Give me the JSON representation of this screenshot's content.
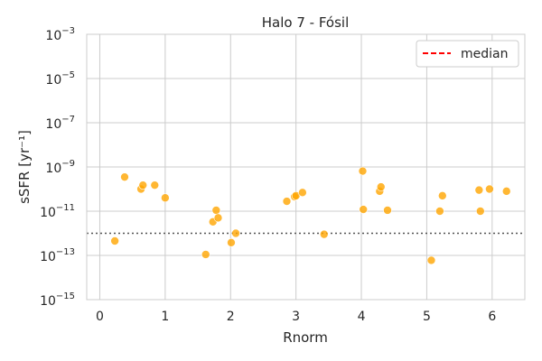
{
  "chart_data": {
    "type": "scatter",
    "title": "Halo 7 - Fósil",
    "xlabel": "Rnorm",
    "ylabel": "sSFR [yr⁻¹]",
    "xlim": [
      -0.2,
      6.5
    ],
    "y_scale": "log",
    "ylim": [
      1e-15,
      0.001
    ],
    "x_ticks": [
      0,
      1,
      2,
      3,
      4,
      5,
      6
    ],
    "x_tick_labels": [
      "0",
      "1",
      "2",
      "3",
      "4",
      "5",
      "6"
    ],
    "y_ticks": [
      1e-15,
      1e-13,
      1e-11,
      1e-09,
      1e-07,
      1e-05,
      0.001
    ],
    "y_tick_labels": [
      {
        "base": "10",
        "exp": "−15"
      },
      {
        "base": "10",
        "exp": "−13"
      },
      {
        "base": "10",
        "exp": "−11"
      },
      {
        "base": "10",
        "exp": "−9"
      },
      {
        "base": "10",
        "exp": "−7"
      },
      {
        "base": "10",
        "exp": "−5"
      },
      {
        "base": "10",
        "exp": "−3"
      }
    ],
    "grid": true,
    "legend_position": "top-right",
    "series": [
      {
        "type": "scatter",
        "color": "#FFA500",
        "points": [
          {
            "x": 0.23,
            "y": 4.5e-13
          },
          {
            "x": 0.38,
            "y": 3.5e-10
          },
          {
            "x": 0.63,
            "y": 1e-10
          },
          {
            "x": 0.66,
            "y": 1.5e-10
          },
          {
            "x": 0.84,
            "y": 1.5e-10
          },
          {
            "x": 1.0,
            "y": 4e-11
          },
          {
            "x": 1.62,
            "y": 1.1e-13
          },
          {
            "x": 1.73,
            "y": 3.3e-12
          },
          {
            "x": 1.78,
            "y": 1.1e-11
          },
          {
            "x": 1.81,
            "y": 5e-12
          },
          {
            "x": 2.01,
            "y": 3.8e-13
          },
          {
            "x": 2.08,
            "y": 1e-12
          },
          {
            "x": 2.86,
            "y": 2.8e-11
          },
          {
            "x": 2.98,
            "y": 4.5e-11
          },
          {
            "x": 3.0,
            "y": 5e-11
          },
          {
            "x": 3.1,
            "y": 7e-11
          },
          {
            "x": 3.43,
            "y": 9e-13
          },
          {
            "x": 4.02,
            "y": 6.5e-10
          },
          {
            "x": 4.03,
            "y": 1.2e-11
          },
          {
            "x": 4.28,
            "y": 8e-11
          },
          {
            "x": 4.3,
            "y": 1.25e-10
          },
          {
            "x": 4.4,
            "y": 1.1e-11
          },
          {
            "x": 5.07,
            "y": 6e-14
          },
          {
            "x": 5.2,
            "y": 1e-11
          },
          {
            "x": 5.24,
            "y": 5e-11
          },
          {
            "x": 5.8,
            "y": 9e-11
          },
          {
            "x": 5.82,
            "y": 1e-11
          },
          {
            "x": 5.96,
            "y": 1e-10
          },
          {
            "x": 6.22,
            "y": 8e-11
          }
        ]
      },
      {
        "name": "median",
        "type": "hline",
        "style": "dashed",
        "color": "#FF0000",
        "y": 1e-12,
        "legend_only": true
      }
    ],
    "reference_lines": [
      {
        "y": 1e-12,
        "style": "dotted",
        "color": "#555555"
      }
    ]
  }
}
